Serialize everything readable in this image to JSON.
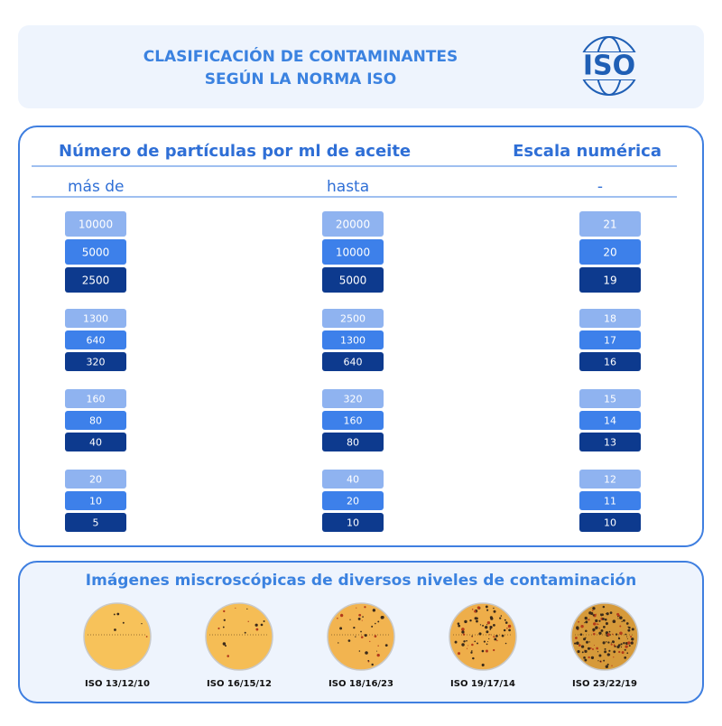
{
  "header": {
    "title_lines": [
      "CLASIFICACIÓN DE CONTAMINANTES",
      "SEGÚN LA NORMA ISO"
    ],
    "logo": "ISO"
  },
  "table": {
    "headings": [
      "Número de partículas por ml de aceite",
      "Escala numérica"
    ],
    "columns": [
      "más de",
      "hasta",
      "-"
    ],
    "groups": [
      [
        [
          10000,
          20000,
          21
        ],
        [
          5000,
          10000,
          20
        ],
        [
          2500,
          5000,
          19
        ]
      ],
      [
        [
          1300,
          2500,
          18
        ],
        [
          640,
          1300,
          17
        ],
        [
          320,
          640,
          16
        ]
      ],
      [
        [
          160,
          320,
          15
        ],
        [
          80,
          160,
          14
        ],
        [
          40,
          80,
          13
        ]
      ],
      [
        [
          20,
          40,
          12
        ],
        [
          10,
          20,
          11
        ],
        [
          5,
          10,
          10
        ]
      ]
    ]
  },
  "images": {
    "title": "Imágenes miscroscópicas de diversos niveles de contaminación",
    "labels": [
      "ISO 13/12/10",
      "ISO 16/15/12",
      "ISO 18/16/23",
      "ISO 19/17/14",
      "ISO 23/22/19"
    ]
  }
}
